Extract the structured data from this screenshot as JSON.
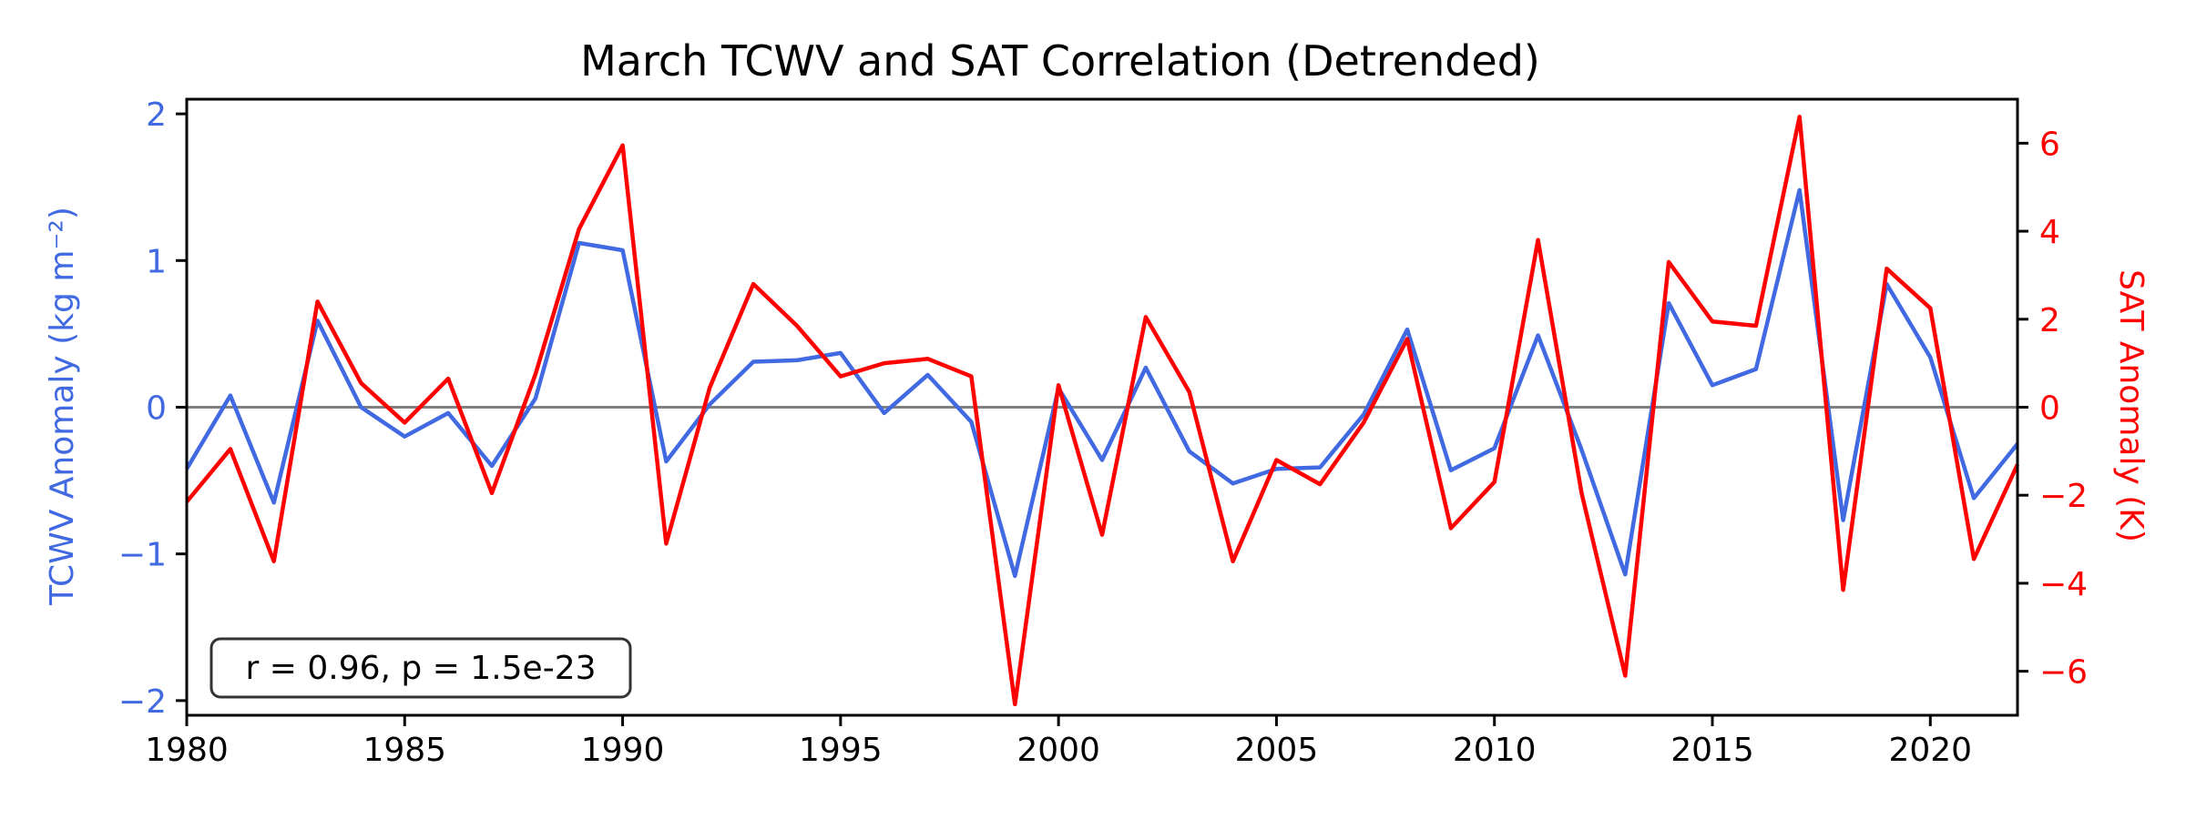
{
  "chart_data": {
    "type": "line",
    "title": "March TCWV and SAT Correlation (Detrended)",
    "xlabel": "",
    "ylabel_left": "TCWV Anomaly (kg m⁻²)",
    "ylabel_right": "SAT Anomaly (K)",
    "xlim": [
      1980,
      2022
    ],
    "ylim_left": [
      -2.1,
      2.1
    ],
    "ylim_right": [
      -7.0,
      7.0
    ],
    "x_ticks": [
      1980,
      1985,
      1990,
      1995,
      2000,
      2005,
      2010,
      2015,
      2020
    ],
    "y_ticks_left": [
      {
        "value": 2,
        "label": "2"
      },
      {
        "value": 1,
        "label": "1"
      },
      {
        "value": 0,
        "label": "0"
      },
      {
        "value": -1,
        "label": "−1"
      },
      {
        "value": -2,
        "label": "−2"
      }
    ],
    "y_ticks_right": [
      {
        "value": 6,
        "label": "6"
      },
      {
        "value": 4,
        "label": "4"
      },
      {
        "value": 2,
        "label": "2"
      },
      {
        "value": 0,
        "label": "0"
      },
      {
        "value": -2,
        "label": "−2"
      },
      {
        "value": -4,
        "label": "−4"
      },
      {
        "value": -6,
        "label": "−6"
      }
    ],
    "zero_line": 0,
    "x": [
      1980,
      1981,
      1982,
      1983,
      1984,
      1985,
      1986,
      1987,
      1988,
      1989,
      1990,
      1991,
      1992,
      1993,
      1994,
      1995,
      1996,
      1997,
      1998,
      1999,
      2000,
      2001,
      2002,
      2003,
      2004,
      2005,
      2006,
      2007,
      2008,
      2009,
      2010,
      2011,
      2012,
      2013,
      2014,
      2015,
      2016,
      2017,
      2018,
      2019,
      2020,
      2021,
      2022
    ],
    "series": [
      {
        "name": "TCWV",
        "axis": "left",
        "color": "#4169E1",
        "values": [
          -0.42,
          0.08,
          -0.65,
          0.59,
          0.0,
          -0.2,
          -0.04,
          -0.4,
          0.06,
          1.12,
          1.07,
          -0.37,
          0.02,
          0.31,
          0.32,
          0.37,
          -0.04,
          0.22,
          -0.1,
          -1.15,
          0.13,
          -0.36,
          0.27,
          -0.3,
          -0.52,
          -0.42,
          -0.41,
          -0.05,
          0.53,
          -0.43,
          -0.28,
          0.49,
          -0.29,
          -1.14,
          0.71,
          0.15,
          0.26,
          1.48,
          -0.77,
          0.84,
          0.34,
          -0.62,
          -0.25
        ]
      },
      {
        "name": "SAT",
        "axis": "right",
        "color": "#FF0000",
        "values": [
          -2.15,
          -0.95,
          -3.5,
          2.4,
          0.55,
          -0.35,
          0.65,
          -1.95,
          0.75,
          4.05,
          5.95,
          -3.1,
          0.45,
          2.8,
          1.85,
          0.7,
          1.0,
          1.1,
          0.7,
          -6.75,
          0.5,
          -2.9,
          2.05,
          0.35,
          -3.5,
          -1.2,
          -1.75,
          -0.35,
          1.55,
          -2.75,
          -1.7,
          3.8,
          -1.95,
          -6.1,
          3.3,
          1.95,
          1.85,
          6.6,
          -4.15,
          3.15,
          2.25,
          -3.45,
          -1.3
        ]
      }
    ],
    "annotation": "r = 0.96, p = 1.5e-23",
    "colors": {
      "left_axis": "#4169E1",
      "right_axis": "#FF0000",
      "zero_line": "#808080",
      "frame": "#000000"
    }
  }
}
